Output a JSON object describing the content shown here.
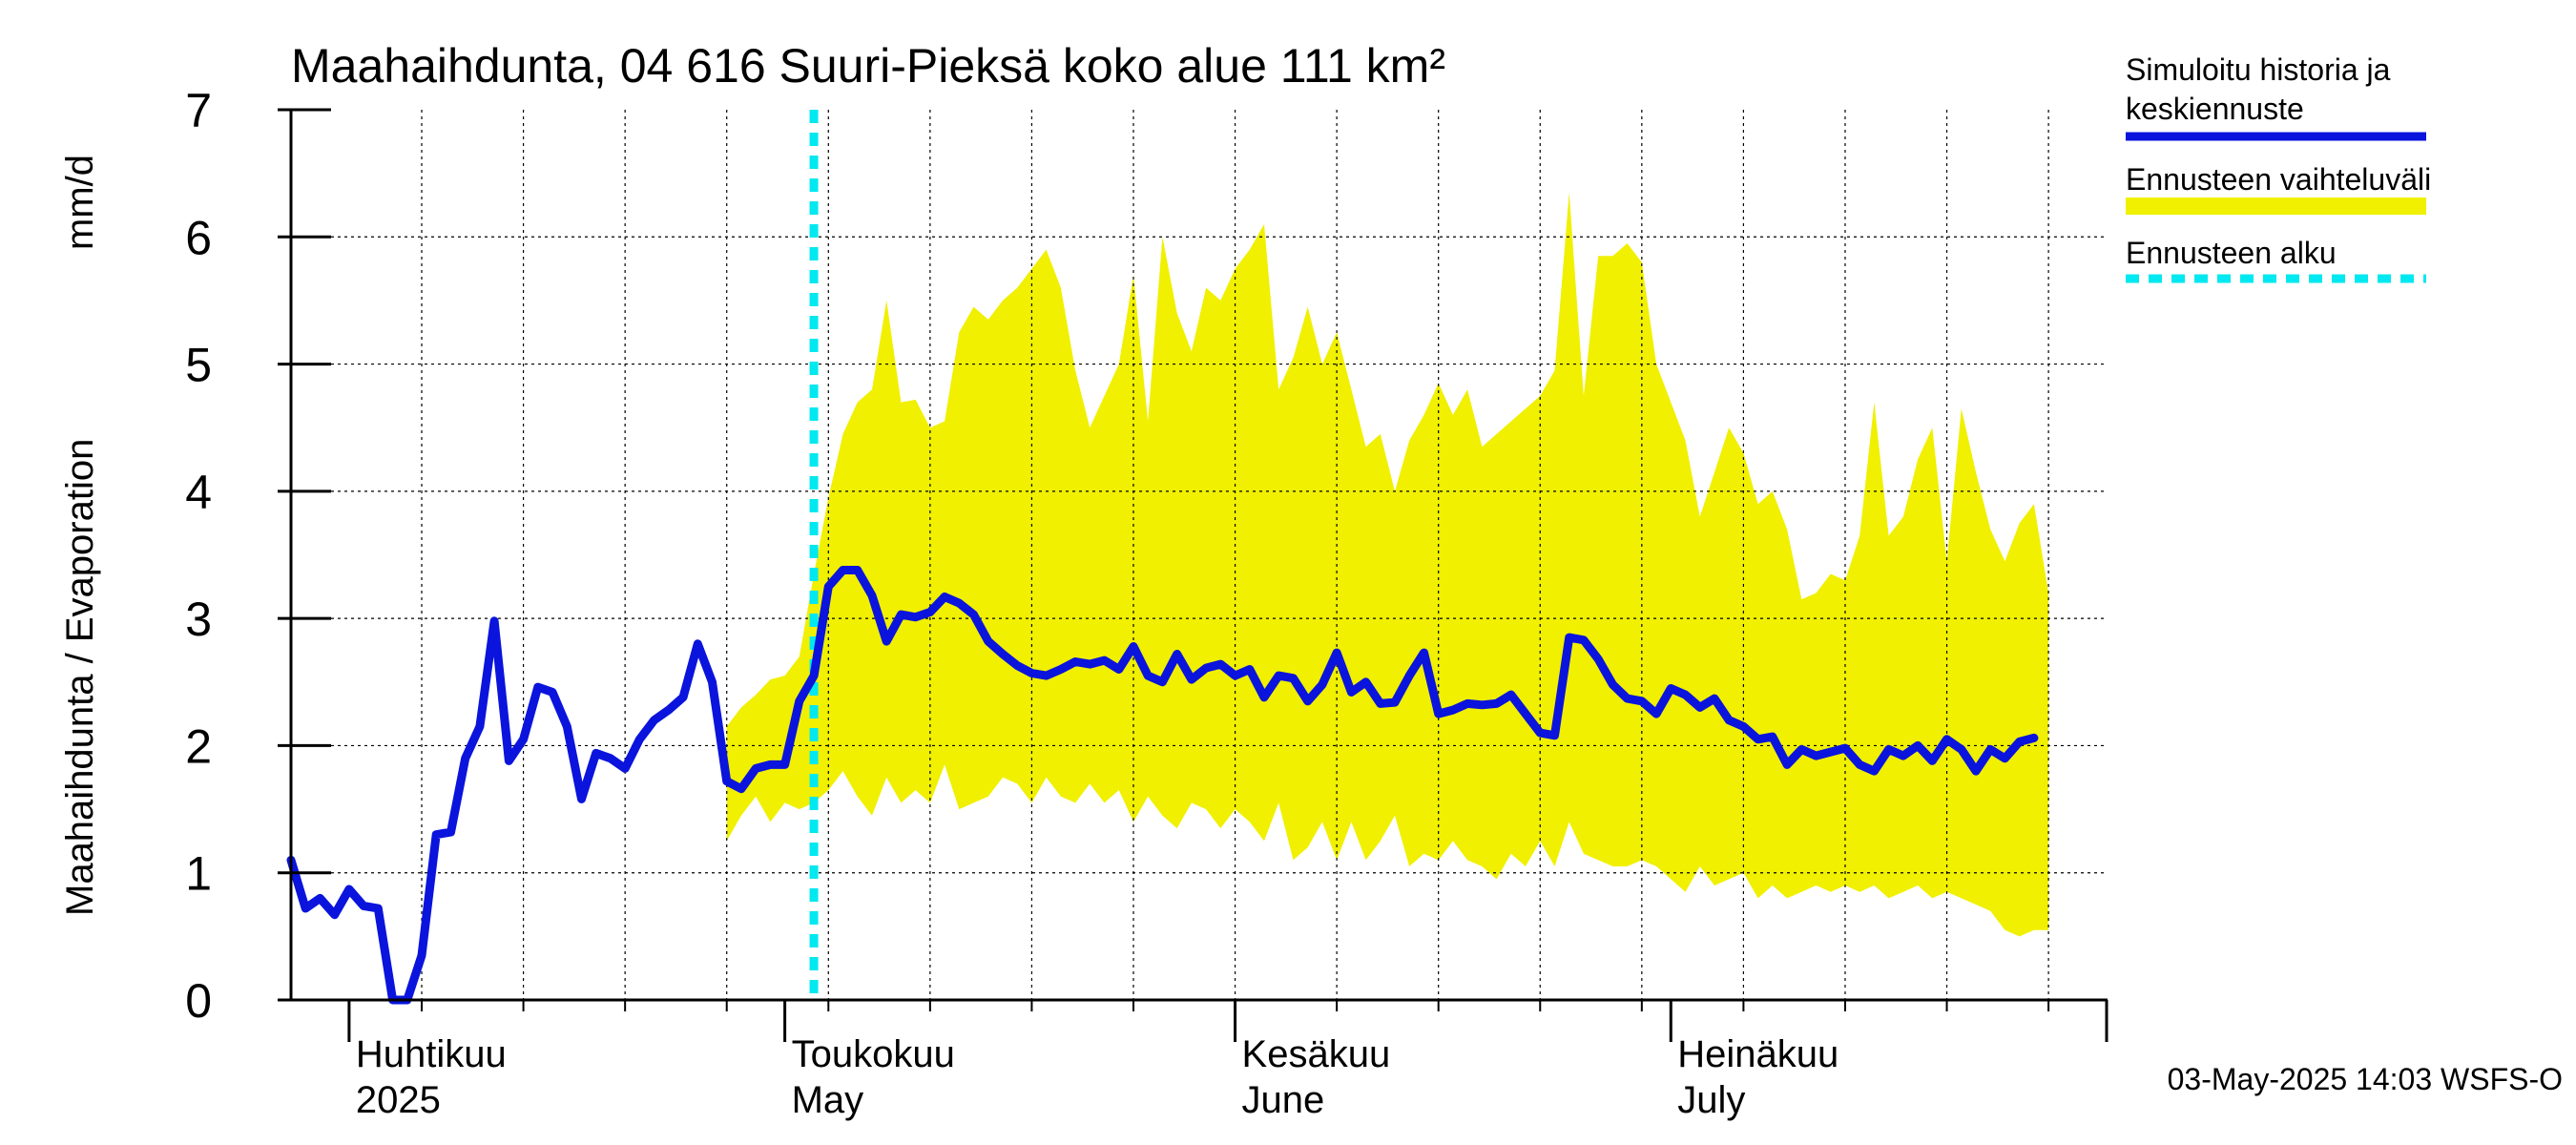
{
  "chart_data": {
    "type": "area",
    "title": "Maahaihdunta, 04 616 Suuri-Pieksä koko alue 111 km²",
    "ylabel_left": "Maahaihdunta / Evaporation",
    "ylabel_unit": "mm/d",
    "ylim": [
      0,
      7
    ],
    "y_ticks": [
      "0",
      "1",
      "2",
      "3",
      "4",
      "5",
      "6",
      "7"
    ],
    "grid": true,
    "x_start": "2025-03-28",
    "x_end": "2025-07-31",
    "month_labels": [
      {
        "fi": "Huhtikuu",
        "en": "2025",
        "date": "2025-04-01"
      },
      {
        "fi": "Toukokuu",
        "en": "May",
        "date": "2025-05-01"
      },
      {
        "fi": "Kesäkuu",
        "en": "June",
        "date": "2025-06-01"
      },
      {
        "fi": "Heinäkuu",
        "en": "July",
        "date": "2025-07-01"
      }
    ],
    "forecast_start": "2025-05-03",
    "legend": {
      "placement": "right",
      "history_label_line1": "Simuloitu historia ja",
      "history_label_line2": "keskiennuste",
      "band_label": "Ennusteen vaihteluväli",
      "start_label": "Ennusteen alku"
    },
    "colors": {
      "history": "#0a14dc",
      "band": "#f0f000",
      "forecast_start": "#00e8f0",
      "grid": "#000000"
    },
    "timestamp": "03-May-2025 14:03 WSFS-O",
    "history": [
      [
        "2025-03-28",
        1.1
      ],
      [
        "2025-03-29",
        0.72
      ],
      [
        "2025-03-30",
        0.8
      ],
      [
        "2025-03-31",
        0.67
      ],
      [
        "2025-04-01",
        0.87
      ],
      [
        "2025-04-02",
        0.74
      ],
      [
        "2025-04-03",
        0.72
      ],
      [
        "2025-04-04",
        0.0
      ],
      [
        "2025-04-05",
        0.0
      ],
      [
        "2025-04-06",
        0.35
      ],
      [
        "2025-04-07",
        1.3
      ],
      [
        "2025-04-08",
        1.32
      ],
      [
        "2025-04-09",
        1.9
      ],
      [
        "2025-04-10",
        2.15
      ],
      [
        "2025-04-11",
        2.98
      ],
      [
        "2025-04-12",
        1.88
      ],
      [
        "2025-04-13",
        2.05
      ],
      [
        "2025-04-14",
        2.46
      ],
      [
        "2025-04-15",
        2.42
      ],
      [
        "2025-04-16",
        2.15
      ],
      [
        "2025-04-17",
        1.58
      ],
      [
        "2025-04-18",
        1.94
      ],
      [
        "2025-04-19",
        1.9
      ],
      [
        "2025-04-20",
        1.82
      ],
      [
        "2025-04-21",
        2.05
      ],
      [
        "2025-04-22",
        2.2
      ],
      [
        "2025-04-23",
        2.28
      ],
      [
        "2025-04-24",
        2.38
      ],
      [
        "2025-04-25",
        2.8
      ],
      [
        "2025-04-26",
        2.5
      ],
      [
        "2025-04-27",
        1.72
      ],
      [
        "2025-04-28",
        1.66
      ],
      [
        "2025-04-29",
        1.82
      ],
      [
        "2025-04-30",
        1.85
      ],
      [
        "2025-05-01",
        1.85
      ],
      [
        "2025-05-02",
        2.35
      ],
      [
        "2025-05-03",
        2.55
      ],
      [
        "2025-05-04",
        3.25
      ],
      [
        "2025-05-05",
        3.38
      ],
      [
        "2025-05-06",
        3.38
      ],
      [
        "2025-05-07",
        3.18
      ],
      [
        "2025-05-08",
        2.82
      ],
      [
        "2025-05-09",
        3.03
      ],
      [
        "2025-05-10",
        3.01
      ],
      [
        "2025-05-11",
        3.05
      ],
      [
        "2025-05-12",
        3.17
      ],
      [
        "2025-05-13",
        3.12
      ],
      [
        "2025-05-14",
        3.03
      ],
      [
        "2025-05-15",
        2.82
      ],
      [
        "2025-05-16",
        2.72
      ],
      [
        "2025-05-17",
        2.63
      ],
      [
        "2025-05-18",
        2.57
      ],
      [
        "2025-05-19",
        2.55
      ],
      [
        "2025-05-20",
        2.6
      ],
      [
        "2025-05-21",
        2.66
      ],
      [
        "2025-05-22",
        2.64
      ],
      [
        "2025-05-23",
        2.67
      ],
      [
        "2025-05-24",
        2.6
      ],
      [
        "2025-05-25",
        2.78
      ],
      [
        "2025-05-26",
        2.55
      ],
      [
        "2025-05-27",
        2.5
      ],
      [
        "2025-05-28",
        2.72
      ],
      [
        "2025-05-29",
        2.52
      ],
      [
        "2025-05-30",
        2.61
      ],
      [
        "2025-05-31",
        2.64
      ],
      [
        "2025-06-01",
        2.55
      ],
      [
        "2025-06-02",
        2.6
      ],
      [
        "2025-06-03",
        2.38
      ],
      [
        "2025-06-04",
        2.55
      ],
      [
        "2025-06-05",
        2.53
      ],
      [
        "2025-06-06",
        2.35
      ],
      [
        "2025-06-07",
        2.48
      ],
      [
        "2025-06-08",
        2.73
      ],
      [
        "2025-06-09",
        2.42
      ],
      [
        "2025-06-10",
        2.5
      ],
      [
        "2025-06-11",
        2.33
      ],
      [
        "2025-06-12",
        2.34
      ],
      [
        "2025-06-13",
        2.55
      ],
      [
        "2025-06-14",
        2.73
      ],
      [
        "2025-06-15",
        2.25
      ],
      [
        "2025-06-16",
        2.28
      ],
      [
        "2025-06-17",
        2.33
      ],
      [
        "2025-06-18",
        2.32
      ],
      [
        "2025-06-19",
        2.33
      ],
      [
        "2025-06-20",
        2.4
      ],
      [
        "2025-06-21",
        2.25
      ],
      [
        "2025-06-22",
        2.1
      ],
      [
        "2025-06-23",
        2.08
      ],
      [
        "2025-06-24",
        2.85
      ],
      [
        "2025-06-25",
        2.83
      ],
      [
        "2025-06-26",
        2.68
      ],
      [
        "2025-06-27",
        2.48
      ],
      [
        "2025-06-28",
        2.37
      ],
      [
        "2025-06-29",
        2.35
      ],
      [
        "2025-06-30",
        2.25
      ],
      [
        "2025-07-01",
        2.45
      ],
      [
        "2025-07-02",
        2.4
      ],
      [
        "2025-07-03",
        2.3
      ],
      [
        "2025-07-04",
        2.37
      ],
      [
        "2025-07-05",
        2.2
      ],
      [
        "2025-07-06",
        2.15
      ],
      [
        "2025-07-07",
        2.05
      ],
      [
        "2025-07-08",
        2.07
      ],
      [
        "2025-07-09",
        1.85
      ],
      [
        "2025-07-10",
        1.97
      ],
      [
        "2025-07-11",
        1.92
      ],
      [
        "2025-07-12",
        1.95
      ],
      [
        "2025-07-13",
        1.98
      ],
      [
        "2025-07-14",
        1.85
      ],
      [
        "2025-07-15",
        1.8
      ],
      [
        "2025-07-16",
        1.97
      ],
      [
        "2025-07-17",
        1.92
      ],
      [
        "2025-07-18",
        2.0
      ],
      [
        "2025-07-19",
        1.88
      ],
      [
        "2025-07-20",
        2.05
      ],
      [
        "2025-07-21",
        1.97
      ],
      [
        "2025-07-22",
        1.8
      ],
      [
        "2025-07-23",
        1.97
      ],
      [
        "2025-07-24",
        1.9
      ],
      [
        "2025-07-25",
        2.03
      ],
      [
        "2025-07-26",
        2.06
      ]
    ],
    "band_upper": [
      [
        "2025-04-27",
        2.15
      ],
      [
        "2025-04-28",
        2.3
      ],
      [
        "2025-04-29",
        2.4
      ],
      [
        "2025-04-30",
        2.52
      ],
      [
        "2025-05-01",
        2.55
      ],
      [
        "2025-05-02",
        2.7
      ],
      [
        "2025-05-03",
        3.35
      ],
      [
        "2025-05-04",
        3.95
      ],
      [
        "2025-05-05",
        4.45
      ],
      [
        "2025-05-06",
        4.7
      ],
      [
        "2025-05-07",
        4.8
      ],
      [
        "2025-05-08",
        5.5
      ],
      [
        "2025-05-09",
        4.7
      ],
      [
        "2025-05-10",
        4.72
      ],
      [
        "2025-05-11",
        4.5
      ],
      [
        "2025-05-12",
        4.55
      ],
      [
        "2025-05-13",
        5.25
      ],
      [
        "2025-05-14",
        5.45
      ],
      [
        "2025-05-15",
        5.35
      ],
      [
        "2025-05-16",
        5.5
      ],
      [
        "2025-05-17",
        5.6
      ],
      [
        "2025-05-18",
        5.75
      ],
      [
        "2025-05-19",
        5.9
      ],
      [
        "2025-05-20",
        5.6
      ],
      [
        "2025-05-21",
        4.95
      ],
      [
        "2025-05-22",
        4.5
      ],
      [
        "2025-05-23",
        4.75
      ],
      [
        "2025-05-24",
        5.0
      ],
      [
        "2025-05-25",
        5.7
      ],
      [
        "2025-05-26",
        4.55
      ],
      [
        "2025-05-27",
        6.0
      ],
      [
        "2025-05-28",
        5.4
      ],
      [
        "2025-05-29",
        5.1
      ],
      [
        "2025-05-30",
        5.6
      ],
      [
        "2025-05-31",
        5.5
      ],
      [
        "2025-06-01",
        5.75
      ],
      [
        "2025-06-02",
        5.9
      ],
      [
        "2025-06-03",
        6.1
      ],
      [
        "2025-06-04",
        4.8
      ],
      [
        "2025-06-05",
        5.05
      ],
      [
        "2025-06-06",
        5.45
      ],
      [
        "2025-06-07",
        5.0
      ],
      [
        "2025-06-08",
        5.25
      ],
      [
        "2025-06-09",
        4.8
      ],
      [
        "2025-06-10",
        4.35
      ],
      [
        "2025-06-11",
        4.45
      ],
      [
        "2025-06-12",
        4.0
      ],
      [
        "2025-06-13",
        4.4
      ],
      [
        "2025-06-14",
        4.6
      ],
      [
        "2025-06-15",
        4.85
      ],
      [
        "2025-06-16",
        4.6
      ],
      [
        "2025-06-17",
        4.8
      ],
      [
        "2025-06-18",
        4.35
      ],
      [
        "2025-06-19",
        4.45
      ],
      [
        "2025-06-20",
        4.55
      ],
      [
        "2025-06-21",
        4.65
      ],
      [
        "2025-06-22",
        4.75
      ],
      [
        "2025-06-23",
        4.95
      ],
      [
        "2025-06-24",
        6.35
      ],
      [
        "2025-06-25",
        4.75
      ],
      [
        "2025-06-26",
        5.85
      ],
      [
        "2025-06-27",
        5.85
      ],
      [
        "2025-06-28",
        5.95
      ],
      [
        "2025-06-29",
        5.8
      ],
      [
        "2025-06-30",
        5.0
      ],
      [
        "2025-07-01",
        4.7
      ],
      [
        "2025-07-02",
        4.4
      ],
      [
        "2025-07-03",
        3.8
      ],
      [
        "2025-07-04",
        4.15
      ],
      [
        "2025-07-05",
        4.5
      ],
      [
        "2025-07-06",
        4.3
      ],
      [
        "2025-07-07",
        3.9
      ],
      [
        "2025-07-08",
        4.0
      ],
      [
        "2025-07-09",
        3.7
      ],
      [
        "2025-07-10",
        3.15
      ],
      [
        "2025-07-11",
        3.2
      ],
      [
        "2025-07-12",
        3.35
      ],
      [
        "2025-07-13",
        3.3
      ],
      [
        "2025-07-14",
        3.65
      ],
      [
        "2025-07-15",
        4.7
      ],
      [
        "2025-07-16",
        3.65
      ],
      [
        "2025-07-17",
        3.8
      ],
      [
        "2025-07-18",
        4.25
      ],
      [
        "2025-07-19",
        4.5
      ],
      [
        "2025-07-20",
        3.45
      ],
      [
        "2025-07-21",
        4.65
      ],
      [
        "2025-07-22",
        4.15
      ],
      [
        "2025-07-23",
        3.7
      ],
      [
        "2025-07-24",
        3.45
      ],
      [
        "2025-07-25",
        3.75
      ],
      [
        "2025-07-26",
        3.9
      ],
      [
        "2025-07-27",
        3.2
      ]
    ],
    "band_lower": [
      [
        "2025-04-27",
        1.25
      ],
      [
        "2025-04-28",
        1.45
      ],
      [
        "2025-04-29",
        1.6
      ],
      [
        "2025-04-30",
        1.4
      ],
      [
        "2025-05-01",
        1.55
      ],
      [
        "2025-05-02",
        1.5
      ],
      [
        "2025-05-03",
        1.55
      ],
      [
        "2025-05-04",
        1.65
      ],
      [
        "2025-05-05",
        1.8
      ],
      [
        "2025-05-06",
        1.6
      ],
      [
        "2025-05-07",
        1.45
      ],
      [
        "2025-05-08",
        1.75
      ],
      [
        "2025-05-09",
        1.55
      ],
      [
        "2025-05-10",
        1.65
      ],
      [
        "2025-05-11",
        1.55
      ],
      [
        "2025-05-12",
        1.85
      ],
      [
        "2025-05-13",
        1.5
      ],
      [
        "2025-05-14",
        1.55
      ],
      [
        "2025-05-15",
        1.6
      ],
      [
        "2025-05-16",
        1.75
      ],
      [
        "2025-05-17",
        1.7
      ],
      [
        "2025-05-18",
        1.55
      ],
      [
        "2025-05-19",
        1.75
      ],
      [
        "2025-05-20",
        1.6
      ],
      [
        "2025-05-21",
        1.55
      ],
      [
        "2025-05-22",
        1.7
      ],
      [
        "2025-05-23",
        1.55
      ],
      [
        "2025-05-24",
        1.65
      ],
      [
        "2025-05-25",
        1.4
      ],
      [
        "2025-05-26",
        1.6
      ],
      [
        "2025-05-27",
        1.45
      ],
      [
        "2025-05-28",
        1.35
      ],
      [
        "2025-05-29",
        1.55
      ],
      [
        "2025-05-30",
        1.5
      ],
      [
        "2025-05-31",
        1.35
      ],
      [
        "2025-06-01",
        1.5
      ],
      [
        "2025-06-02",
        1.4
      ],
      [
        "2025-06-03",
        1.25
      ],
      [
        "2025-06-04",
        1.55
      ],
      [
        "2025-06-05",
        1.1
      ],
      [
        "2025-06-06",
        1.2
      ],
      [
        "2025-06-07",
        1.4
      ],
      [
        "2025-06-08",
        1.1
      ],
      [
        "2025-06-09",
        1.4
      ],
      [
        "2025-06-10",
        1.1
      ],
      [
        "2025-06-11",
        1.25
      ],
      [
        "2025-06-12",
        1.45
      ],
      [
        "2025-06-13",
        1.05
      ],
      [
        "2025-06-14",
        1.15
      ],
      [
        "2025-06-15",
        1.1
      ],
      [
        "2025-06-16",
        1.25
      ],
      [
        "2025-06-17",
        1.1
      ],
      [
        "2025-06-18",
        1.05
      ],
      [
        "2025-06-19",
        0.95
      ],
      [
        "2025-06-20",
        1.15
      ],
      [
        "2025-06-21",
        1.05
      ],
      [
        "2025-06-22",
        1.25
      ],
      [
        "2025-06-23",
        1.05
      ],
      [
        "2025-06-24",
        1.4
      ],
      [
        "2025-06-25",
        1.15
      ],
      [
        "2025-06-26",
        1.1
      ],
      [
        "2025-06-27",
        1.05
      ],
      [
        "2025-06-28",
        1.05
      ],
      [
        "2025-06-29",
        1.1
      ],
      [
        "2025-06-30",
        1.05
      ],
      [
        "2025-07-01",
        0.95
      ],
      [
        "2025-07-02",
        0.85
      ],
      [
        "2025-07-03",
        1.05
      ],
      [
        "2025-07-04",
        0.9
      ],
      [
        "2025-07-05",
        0.95
      ],
      [
        "2025-07-06",
        1.0
      ],
      [
        "2025-07-07",
        0.8
      ],
      [
        "2025-07-08",
        0.9
      ],
      [
        "2025-07-09",
        0.8
      ],
      [
        "2025-07-10",
        0.85
      ],
      [
        "2025-07-11",
        0.9
      ],
      [
        "2025-07-12",
        0.85
      ],
      [
        "2025-07-13",
        0.9
      ],
      [
        "2025-07-14",
        0.85
      ],
      [
        "2025-07-15",
        0.9
      ],
      [
        "2025-07-16",
        0.8
      ],
      [
        "2025-07-17",
        0.85
      ],
      [
        "2025-07-18",
        0.9
      ],
      [
        "2025-07-19",
        0.8
      ],
      [
        "2025-07-20",
        0.85
      ],
      [
        "2025-07-21",
        0.8
      ],
      [
        "2025-07-22",
        0.75
      ],
      [
        "2025-07-23",
        0.7
      ],
      [
        "2025-07-24",
        0.55
      ],
      [
        "2025-07-25",
        0.5
      ],
      [
        "2025-07-26",
        0.55
      ],
      [
        "2025-07-27",
        0.55
      ]
    ]
  }
}
